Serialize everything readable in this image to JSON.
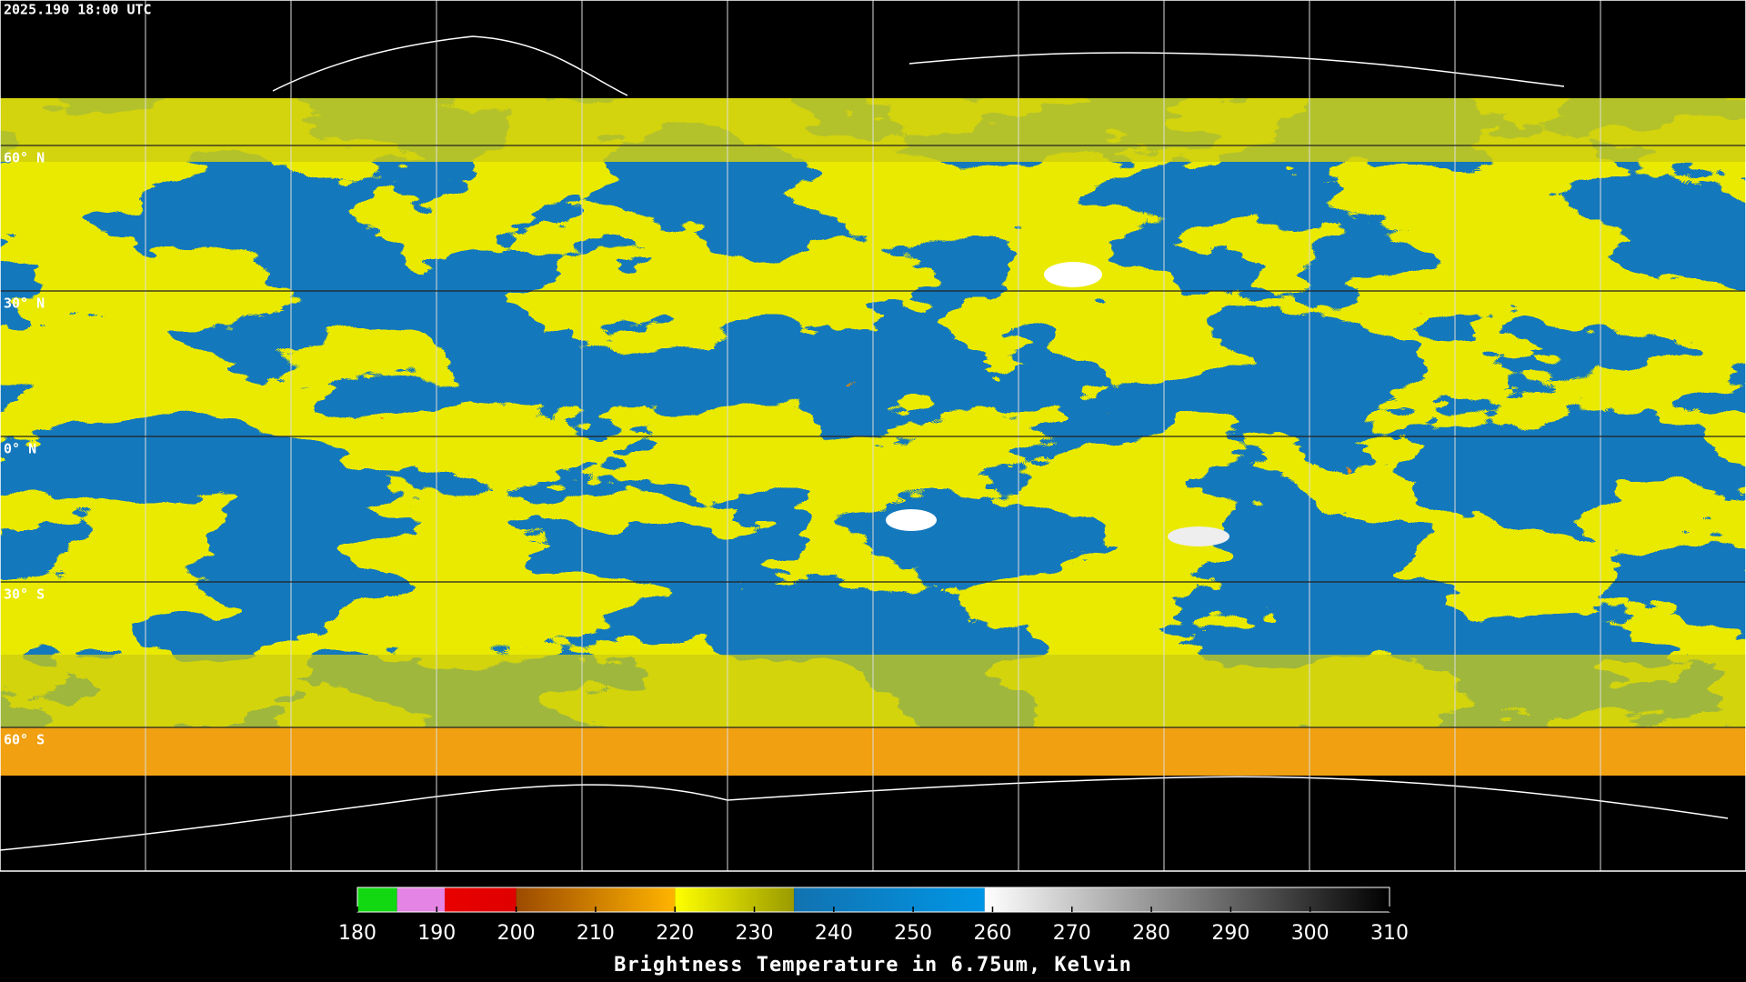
{
  "header": {
    "timestamp": "2025.190 18:00 UTC"
  },
  "map": {
    "latitudes": [
      {
        "value": 60,
        "label": "60° N"
      },
      {
        "value": 30,
        "label": "30° N"
      },
      {
        "value": 0,
        "label": "0° N"
      },
      {
        "value": -30,
        "label": "30° S"
      },
      {
        "value": -60,
        "label": "60° S"
      }
    ]
  },
  "colorbar": {
    "title": "Brightness Temperature in 6.75um, Kelvin",
    "range": [
      180,
      310
    ],
    "ticks": [
      180,
      190,
      200,
      210,
      220,
      230,
      240,
      250,
      260,
      270,
      280,
      290,
      300,
      310
    ],
    "segments": [
      {
        "from": 180,
        "to": 185,
        "colors": [
          "#12d812",
          "#12d812"
        ]
      },
      {
        "from": 185,
        "to": 191,
        "colors": [
          "#e484e4",
          "#e484e4"
        ]
      },
      {
        "from": 191,
        "to": 200,
        "colors": [
          "#e80000",
          "#e00000"
        ]
      },
      {
        "from": 200,
        "to": 220,
        "colors": [
          "#9c4a00",
          "#ffb400"
        ]
      },
      {
        "from": 220,
        "to": 235,
        "colors": [
          "#ffff00",
          "#9a9a00"
        ]
      },
      {
        "from": 235,
        "to": 259,
        "colors": [
          "#1272b0",
          "#0096e6"
        ]
      },
      {
        "from": 259,
        "to": 310,
        "colors": [
          "#ffffff",
          "#000000"
        ]
      }
    ]
  }
}
